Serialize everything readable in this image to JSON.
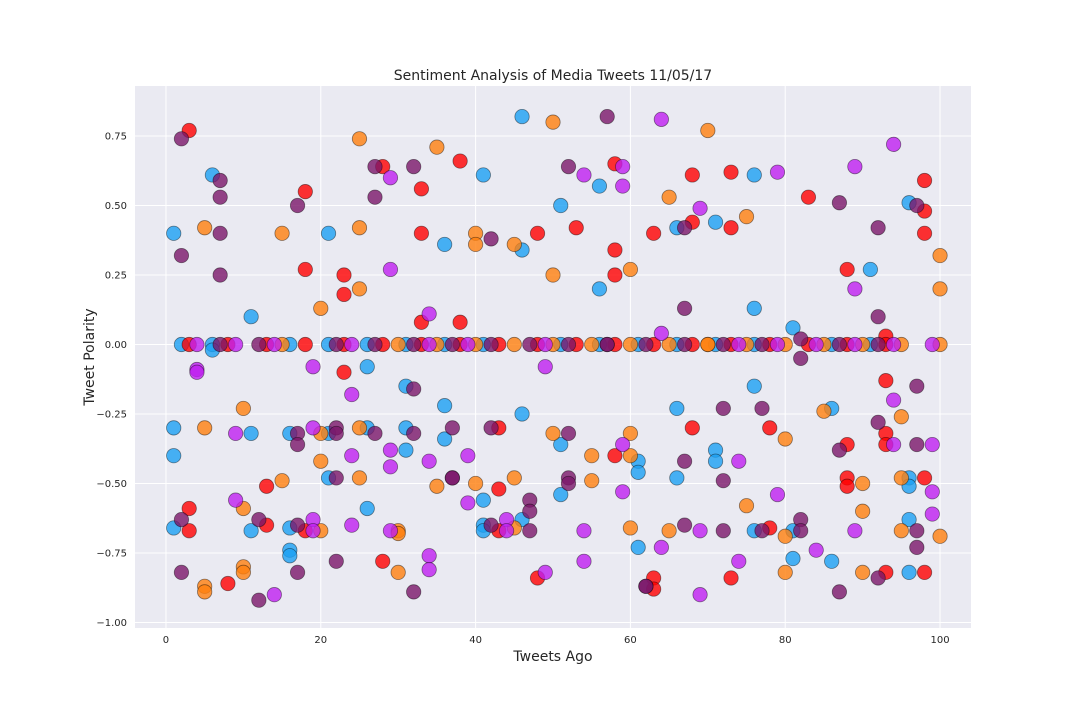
{
  "chart_data": {
    "type": "scatter",
    "title": "Sentiment Analysis of Media Tweets 11/05/17",
    "xlabel": "Tweets Ago",
    "ylabel": "Tweet Polarity",
    "xlim": [
      -4,
      104
    ],
    "ylim": [
      -1.02,
      0.93
    ],
    "xticks": [
      0,
      20,
      40,
      60,
      80,
      100
    ],
    "xtick_labels": [
      "0",
      "20",
      "40",
      "60",
      "80",
      "100"
    ],
    "yticks": [
      -1.0,
      -0.75,
      -0.5,
      -0.25,
      0.0,
      0.25,
      0.5,
      0.75
    ],
    "ytick_labels": [
      "−1.00",
      "−0.75",
      "−0.50",
      "−0.25",
      "0.00",
      "0.25",
      "0.50",
      "0.75"
    ],
    "grid": true,
    "legend": false,
    "background": "#eaeaf2",
    "marker_alpha": 0.8,
    "series": [
      {
        "color": "#1ca0f2",
        "x": [
          1,
          1,
          1,
          1,
          2,
          6,
          6,
          6,
          11,
          11,
          11,
          16,
          16,
          16,
          16,
          16,
          21,
          21,
          21,
          21,
          26,
          26,
          26,
          26,
          31,
          31,
          31,
          31,
          36,
          36,
          36,
          36,
          41,
          41,
          41,
          41,
          41,
          46,
          46,
          46,
          46,
          51,
          51,
          51,
          51,
          56,
          56,
          56,
          61,
          61,
          61,
          61,
          66,
          66,
          66,
          66,
          71,
          71,
          71,
          71,
          76,
          76,
          76,
          76,
          76,
          81,
          81,
          81,
          86,
          86,
          86,
          91,
          91,
          96,
          96,
          96,
          96,
          96
        ],
        "y": [
          0.4,
          -0.3,
          -0.4,
          -0.66,
          0.0,
          0.61,
          0.0,
          -0.02,
          0.1,
          -0.32,
          -0.67,
          0.0,
          -0.32,
          -0.66,
          -0.74,
          -0.76,
          0.4,
          0.0,
          -0.32,
          -0.48,
          0.0,
          -0.08,
          -0.3,
          -0.59,
          0.0,
          -0.15,
          -0.3,
          -0.38,
          0.36,
          0.0,
          -0.22,
          -0.34,
          0.61,
          0.0,
          -0.56,
          -0.65,
          -0.67,
          0.82,
          0.34,
          -0.25,
          -0.63,
          0.5,
          0.0,
          -0.36,
          -0.54,
          0.57,
          0.2,
          0.0,
          0.0,
          -0.42,
          -0.46,
          -0.73,
          0.42,
          0.0,
          -0.23,
          -0.48,
          0.44,
          0.0,
          -0.38,
          -0.42,
          0.61,
          0.13,
          0.0,
          -0.15,
          -0.67,
          0.06,
          -0.67,
          -0.77,
          0.0,
          -0.23,
          -0.78,
          0.27,
          0.0,
          0.51,
          -0.48,
          -0.51,
          -0.63,
          -0.82
        ]
      },
      {
        "color": "#ff0000",
        "x": [
          3,
          3,
          3,
          3,
          8,
          8,
          13,
          13,
          13,
          18,
          18,
          18,
          18,
          23,
          23,
          23,
          23,
          28,
          28,
          28,
          33,
          33,
          33,
          33,
          38,
          38,
          38,
          43,
          43,
          43,
          43,
          48,
          48,
          48,
          53,
          53,
          58,
          58,
          58,
          58,
          58,
          63,
          63,
          63,
          63,
          68,
          68,
          68,
          68,
          73,
          73,
          73,
          73,
          78,
          78,
          78,
          83,
          83,
          88,
          88,
          88,
          88,
          88,
          93,
          93,
          93,
          93,
          93,
          93,
          98,
          98,
          98,
          98,
          98
        ],
        "y": [
          0.77,
          0.0,
          -0.59,
          -0.67,
          0.0,
          -0.86,
          0.0,
          -0.51,
          -0.65,
          0.55,
          0.27,
          0.0,
          -0.67,
          0.25,
          0.18,
          0.0,
          -0.1,
          0.64,
          0.0,
          -0.78,
          0.56,
          0.4,
          0.08,
          0.0,
          0.66,
          0.08,
          0.0,
          0.0,
          -0.3,
          -0.52,
          -0.67,
          0.4,
          0.0,
          -0.84,
          0.42,
          0.0,
          0.65,
          0.34,
          0.25,
          0.0,
          -0.4,
          0.4,
          0.0,
          -0.84,
          -0.88,
          0.61,
          0.44,
          0.0,
          -0.3,
          0.62,
          0.42,
          0.0,
          -0.84,
          0.0,
          -0.3,
          -0.66,
          0.53,
          0.0,
          0.27,
          -0.36,
          -0.48,
          -0.51,
          0.0,
          0.03,
          -0.13,
          -0.32,
          -0.36,
          -0.82,
          0.0,
          0.59,
          0.48,
          0.4,
          -0.48,
          -0.82
        ]
      },
      {
        "color": "#ff7f0e",
        "x": [
          5,
          5,
          5,
          5,
          10,
          10,
          10,
          10,
          15,
          15,
          15,
          20,
          20,
          20,
          20,
          25,
          25,
          25,
          25,
          25,
          30,
          30,
          30,
          30,
          35,
          35,
          35,
          40,
          40,
          40,
          40,
          45,
          45,
          45,
          45,
          50,
          50,
          50,
          50,
          55,
          55,
          55,
          60,
          60,
          60,
          60,
          60,
          65,
          65,
          65,
          70,
          70,
          70,
          75,
          75,
          75,
          80,
          80,
          80,
          80,
          85,
          85,
          90,
          90,
          90,
          90,
          95,
          95,
          95,
          95,
          100,
          100,
          100,
          100
        ],
        "y": [
          0.42,
          -0.3,
          -0.87,
          -0.89,
          -0.23,
          -0.59,
          -0.8,
          -0.82,
          0.4,
          0.0,
          -0.49,
          0.13,
          -0.32,
          -0.42,
          -0.67,
          0.74,
          0.42,
          0.2,
          -0.3,
          -0.48,
          0.0,
          -0.67,
          -0.68,
          -0.82,
          0.71,
          0.0,
          -0.51,
          0.4,
          0.36,
          0.0,
          -0.5,
          0.36,
          0.0,
          -0.48,
          -0.66,
          0.8,
          0.25,
          0.0,
          -0.32,
          0.0,
          -0.4,
          -0.49,
          0.27,
          0.0,
          -0.32,
          -0.4,
          -0.66,
          0.53,
          0.0,
          -0.67,
          0.77,
          0.0,
          0.0,
          0.46,
          0.0,
          -0.58,
          0.0,
          -0.34,
          -0.69,
          -0.82,
          0.0,
          -0.24,
          0.0,
          -0.5,
          -0.6,
          -0.82,
          0.0,
          -0.26,
          -0.48,
          -0.67,
          0.32,
          0.2,
          0.0,
          -0.69
        ]
      },
      {
        "color": "#7b1769",
        "x": [
          2,
          2,
          2,
          2,
          7,
          7,
          7,
          7,
          7,
          12,
          12,
          12,
          17,
          17,
          17,
          17,
          17,
          22,
          22,
          22,
          22,
          22,
          27,
          27,
          27,
          27,
          32,
          32,
          32,
          32,
          32,
          37,
          37,
          37,
          37,
          42,
          42,
          42,
          42,
          47,
          47,
          47,
          47,
          52,
          52,
          52,
          52,
          52,
          57,
          57,
          57,
          62,
          62,
          62,
          67,
          67,
          67,
          67,
          67,
          72,
          72,
          72,
          72,
          77,
          77,
          77,
          82,
          82,
          82,
          82,
          87,
          87,
          87,
          87,
          92,
          92,
          92,
          92,
          92,
          97,
          97,
          97,
          97,
          97
        ],
        "y": [
          0.74,
          0.32,
          -0.63,
          -0.82,
          0.59,
          0.53,
          0.4,
          0.25,
          0.0,
          0.0,
          -0.63,
          -0.92,
          0.5,
          -0.32,
          -0.36,
          -0.65,
          -0.82,
          0.0,
          -0.3,
          -0.32,
          -0.48,
          -0.78,
          0.64,
          0.53,
          0.0,
          -0.32,
          0.64,
          0.0,
          -0.16,
          -0.32,
          -0.89,
          0.0,
          -0.3,
          -0.48,
          -0.48,
          0.38,
          0.0,
          -0.3,
          -0.65,
          0.0,
          -0.56,
          -0.6,
          -0.67,
          0.64,
          0.0,
          -0.32,
          -0.48,
          -0.5,
          0.82,
          0.0,
          0.0,
          0.0,
          -0.87,
          -0.87,
          0.42,
          0.13,
          0.0,
          -0.42,
          -0.65,
          0.0,
          -0.23,
          -0.49,
          -0.67,
          0.0,
          -0.23,
          -0.67,
          0.02,
          -0.05,
          -0.63,
          -0.67,
          0.51,
          0.0,
          -0.38,
          -0.89,
          0.42,
          0.1,
          0.0,
          -0.28,
          -0.84,
          0.5,
          -0.15,
          -0.36,
          -0.67,
          -0.73
        ]
      },
      {
        "color": "#bf1ff0",
        "x": [
          4,
          4,
          4,
          9,
          9,
          9,
          14,
          14,
          19,
          19,
          19,
          19,
          24,
          24,
          24,
          24,
          29,
          29,
          29,
          29,
          29,
          34,
          34,
          34,
          34,
          34,
          39,
          39,
          39,
          44,
          44,
          49,
          49,
          49,
          54,
          54,
          54,
          59,
          59,
          59,
          59,
          64,
          64,
          64,
          69,
          69,
          69,
          74,
          74,
          74,
          79,
          79,
          79,
          84,
          84,
          89,
          89,
          89,
          89,
          94,
          94,
          94,
          94,
          99,
          99,
          99,
          99
        ],
        "y": [
          0.0,
          -0.09,
          -0.1,
          0.0,
          -0.32,
          -0.56,
          0.0,
          -0.9,
          -0.08,
          -0.3,
          -0.63,
          -0.67,
          0.0,
          -0.18,
          -0.4,
          -0.65,
          0.6,
          0.27,
          -0.38,
          -0.44,
          -0.67,
          0.11,
          0.0,
          -0.42,
          -0.76,
          -0.81,
          0.0,
          -0.4,
          -0.57,
          -0.63,
          -0.67,
          0.0,
          -0.08,
          -0.82,
          0.61,
          -0.67,
          -0.78,
          0.64,
          0.57,
          -0.36,
          -0.53,
          0.81,
          0.04,
          -0.73,
          0.49,
          -0.67,
          -0.9,
          0.0,
          -0.42,
          -0.78,
          0.62,
          0.0,
          -0.54,
          0.0,
          -0.74,
          0.64,
          0.2,
          0.0,
          -0.67,
          0.72,
          -0.2,
          -0.36,
          0.0,
          0.0,
          -0.36,
          -0.53,
          -0.61
        ]
      }
    ]
  }
}
